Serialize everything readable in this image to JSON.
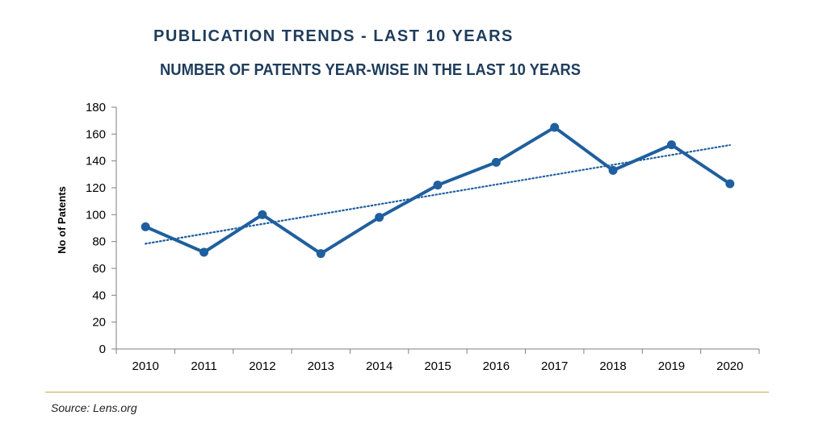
{
  "title": "PUBLICATION TRENDS - LAST 10 YEARS",
  "subtitle": "NUMBER OF PATENTS YEAR-WISE IN THE LAST 10 YEARS",
  "source": "Source: Lens.org",
  "colors": {
    "series": "#1f5f9e",
    "trendline": "#1f5f9e",
    "title": "#1f3d5c",
    "rule": "#c8a951"
  },
  "chart_data": {
    "type": "line",
    "xlabel": "",
    "ylabel": "No of Patents",
    "categories": [
      "2010",
      "2011",
      "2012",
      "2013",
      "2014",
      "2015",
      "2016",
      "2017",
      "2018",
      "2019",
      "2020"
    ],
    "series": [
      {
        "values": [
          91,
          72,
          100,
          71,
          98,
          122,
          139,
          165,
          133,
          152,
          123
        ]
      }
    ],
    "trendline": {
      "type": "linear",
      "style": "dotted"
    },
    "ylim": [
      0,
      180
    ],
    "yticks": [
      0,
      20,
      40,
      60,
      80,
      100,
      120,
      140,
      160,
      180
    ],
    "grid": false,
    "legend": "none"
  }
}
